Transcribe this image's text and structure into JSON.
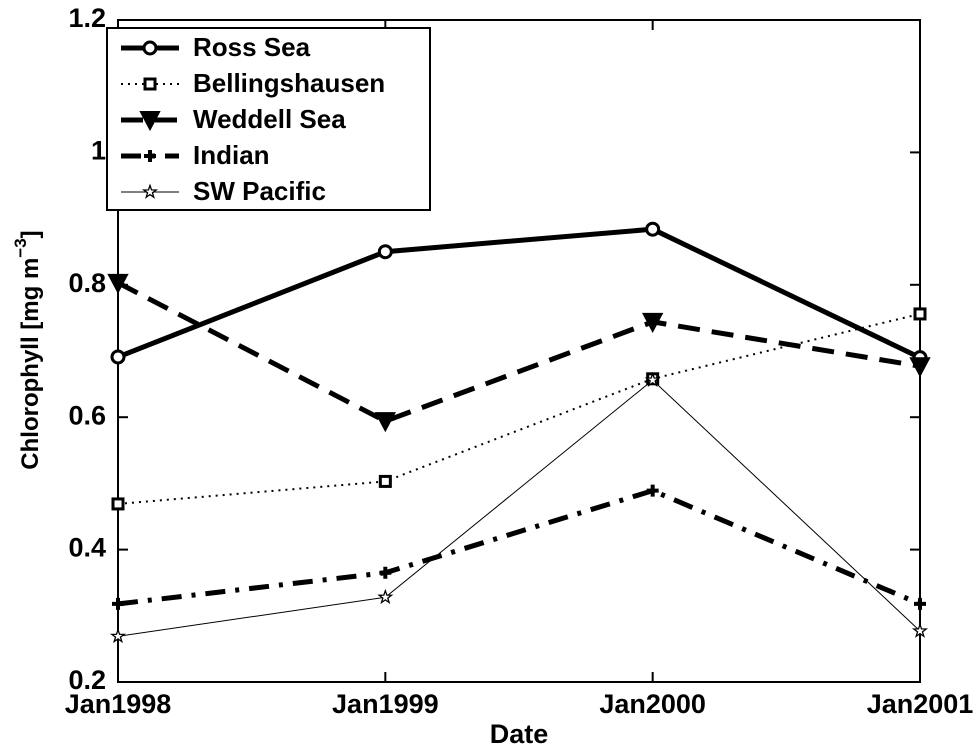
{
  "chart_data": {
    "type": "line",
    "x_label": "Date",
    "y_label": {
      "text": "Chlorophyll [mg m",
      "superscript": "−3",
      "suffix": "]"
    },
    "categories": [
      "Jan1998",
      "Jan1999",
      "Jan2000",
      "Jan2001"
    ],
    "ylim": [
      0.2,
      1.2
    ],
    "yticks": [
      0.2,
      0.4,
      0.6,
      0.8,
      1,
      1.2
    ],
    "legend": "upper left",
    "grid": false,
    "series": [
      {
        "name": "Ross Sea",
        "color": "#000000",
        "marker": "circle",
        "line_style": "solid",
        "line_width": 5,
        "values": [
          0.691,
          0.85,
          0.884,
          0.69
        ]
      },
      {
        "name": "Bellingshausen",
        "color": "#000000",
        "marker": "square",
        "line_style": "dotted",
        "line_width": 2,
        "values": [
          0.469,
          0.503,
          0.658,
          0.756
        ]
      },
      {
        "name": "Weddell Sea",
        "color": "#000000",
        "marker": "triangle-down",
        "line_style": "dashed",
        "line_width": 5,
        "values": [
          0.803,
          0.594,
          0.744,
          0.677
        ]
      },
      {
        "name": "Indian",
        "color": "#000000",
        "marker": "plus",
        "line_style": "dashdot",
        "line_width": 5,
        "values": [
          0.318,
          0.365,
          0.489,
          0.318
        ]
      },
      {
        "name": "SW Pacific",
        "color": "#000000",
        "marker": "star",
        "line_style": "solid",
        "line_width": 1,
        "values": [
          0.269,
          0.328,
          0.656,
          0.277
        ]
      }
    ]
  }
}
